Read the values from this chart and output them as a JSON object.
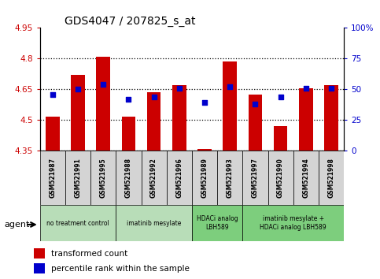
{
  "title": "GDS4047 / 207825_s_at",
  "samples": [
    "GSM521987",
    "GSM521991",
    "GSM521995",
    "GSM521988",
    "GSM521992",
    "GSM521996",
    "GSM521989",
    "GSM521993",
    "GSM521997",
    "GSM521990",
    "GSM521994",
    "GSM521998"
  ],
  "bar_values": [
    4.515,
    4.72,
    4.81,
    4.515,
    4.635,
    4.67,
    4.357,
    4.785,
    4.625,
    4.47,
    4.655,
    4.67
  ],
  "percentile_values": [
    46,
    50,
    54,
    42,
    44,
    51,
    39,
    52,
    38,
    44,
    51,
    51
  ],
  "ylim_left": [
    4.35,
    4.95
  ],
  "ylim_right": [
    0,
    100
  ],
  "yticks_left": [
    4.35,
    4.5,
    4.65,
    4.8,
    4.95
  ],
  "yticks_right": [
    0,
    25,
    50,
    75,
    100
  ],
  "bar_color": "#cc0000",
  "dot_color": "#0000cc",
  "bar_bottom": 4.35,
  "groups": [
    {
      "label": "no treatment control",
      "start": 0,
      "end": 3,
      "color": "#b8ddb8"
    },
    {
      "label": "imatinib mesylate",
      "start": 3,
      "end": 6,
      "color": "#b8ddb8"
    },
    {
      "label": "HDACi analog\nLBH589",
      "start": 6,
      "end": 8,
      "color": "#7dce7d"
    },
    {
      "label": "imatinib mesylate +\nHDACi analog LBH589",
      "start": 8,
      "end": 12,
      "color": "#7dce7d"
    }
  ],
  "bar_width": 0.55,
  "agent_label": "agent",
  "legend1": "transformed count",
  "legend2": "percentile rank within the sample"
}
